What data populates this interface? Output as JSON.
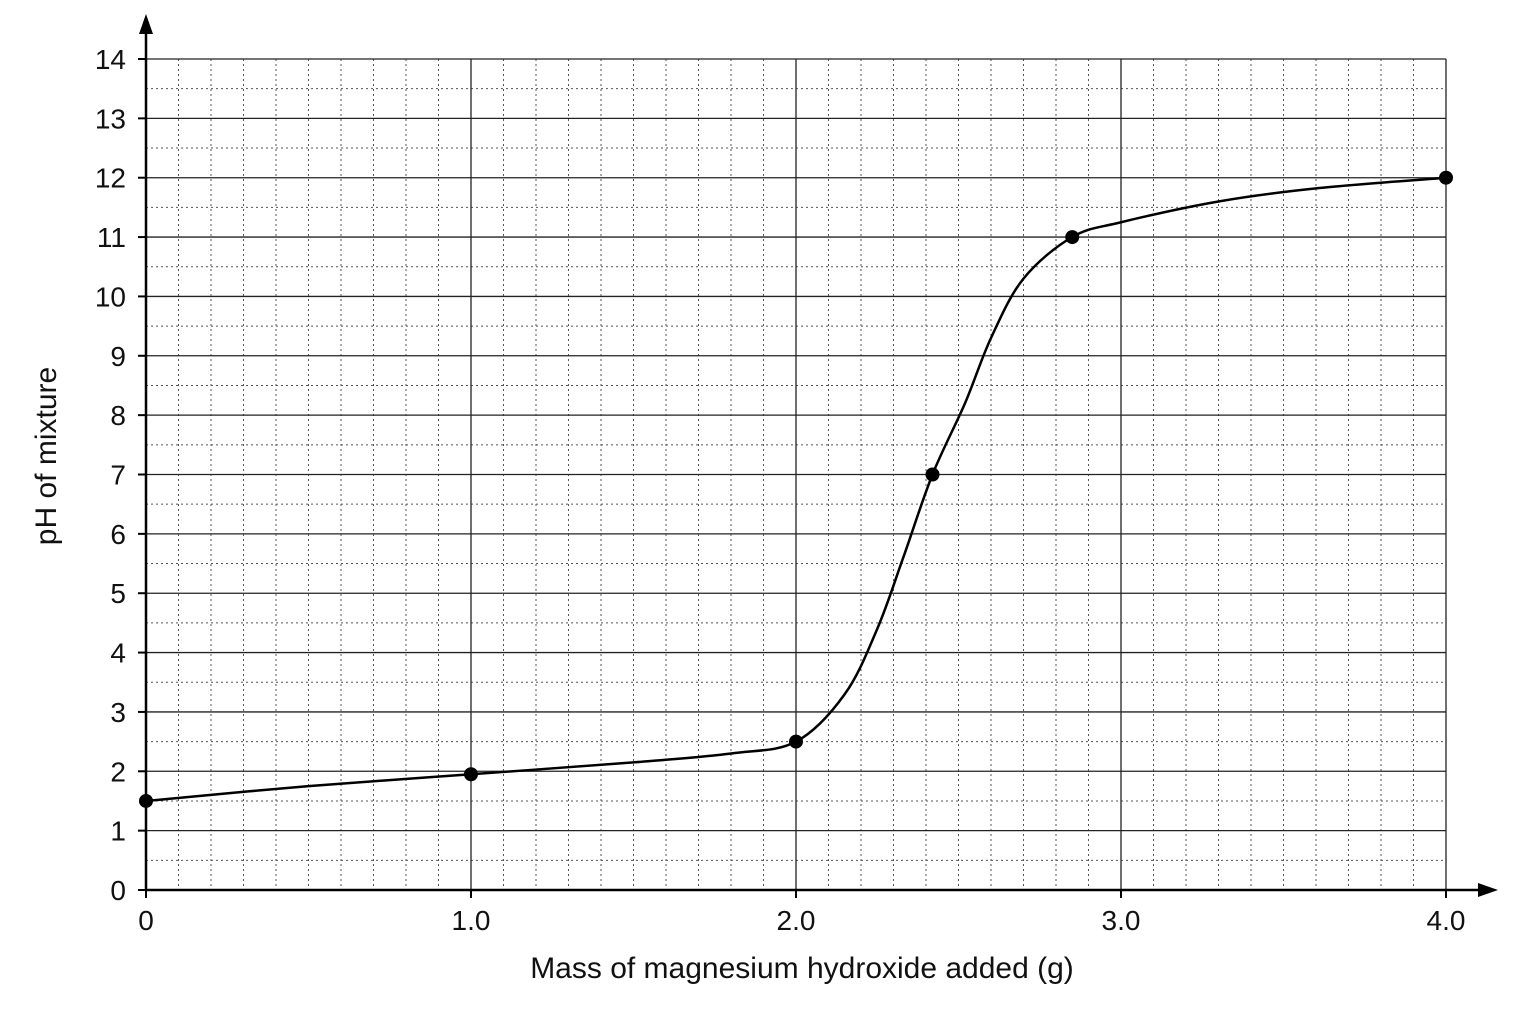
{
  "chart_data": {
    "type": "line",
    "title": "",
    "xlabel": "Mass of magnesium hydroxide added (g)",
    "ylabel": "pH of mixture",
    "xlim": [
      0,
      4.1
    ],
    "ylim": [
      0,
      14
    ],
    "x_ticks": [
      0,
      1.0,
      2.0,
      3.0,
      4.0
    ],
    "x_tick_labels": [
      "0",
      "1.0",
      "2.0",
      "3.0",
      "4.0"
    ],
    "y_ticks": [
      0,
      1,
      2,
      3,
      4,
      5,
      6,
      7,
      8,
      9,
      10,
      11,
      12,
      13,
      14
    ],
    "y_tick_labels": [
      "0",
      "1",
      "2",
      "3",
      "4",
      "5",
      "6",
      "7",
      "8",
      "9",
      "10",
      "11",
      "12",
      "13",
      "14"
    ],
    "grid": true,
    "points": [
      {
        "x": 0,
        "y": 1.5
      },
      {
        "x": 1.0,
        "y": 1.95
      },
      {
        "x": 2.0,
        "y": 2.5
      },
      {
        "x": 2.42,
        "y": 7.0
      },
      {
        "x": 2.85,
        "y": 11.0
      },
      {
        "x": 4.0,
        "y": 12.0
      }
    ],
    "curve": [
      {
        "x": 0,
        "y": 1.5
      },
      {
        "x": 0.5,
        "y": 1.75
      },
      {
        "x": 1.0,
        "y": 1.95
      },
      {
        "x": 1.5,
        "y": 2.15
      },
      {
        "x": 1.8,
        "y": 2.3
      },
      {
        "x": 2.0,
        "y": 2.5
      },
      {
        "x": 2.15,
        "y": 3.3
      },
      {
        "x": 2.25,
        "y": 4.4
      },
      {
        "x": 2.33,
        "y": 5.6
      },
      {
        "x": 2.42,
        "y": 7.0
      },
      {
        "x": 2.52,
        "y": 8.2
      },
      {
        "x": 2.6,
        "y": 9.3
      },
      {
        "x": 2.7,
        "y": 10.3
      },
      {
        "x": 2.85,
        "y": 11.0
      },
      {
        "x": 3.0,
        "y": 11.25
      },
      {
        "x": 3.3,
        "y": 11.6
      },
      {
        "x": 3.6,
        "y": 11.82
      },
      {
        "x": 4.0,
        "y": 12.0
      }
    ],
    "colors": {
      "line": "#000000",
      "grid_major": "#222222",
      "grid_minor": "#555555"
    }
  }
}
